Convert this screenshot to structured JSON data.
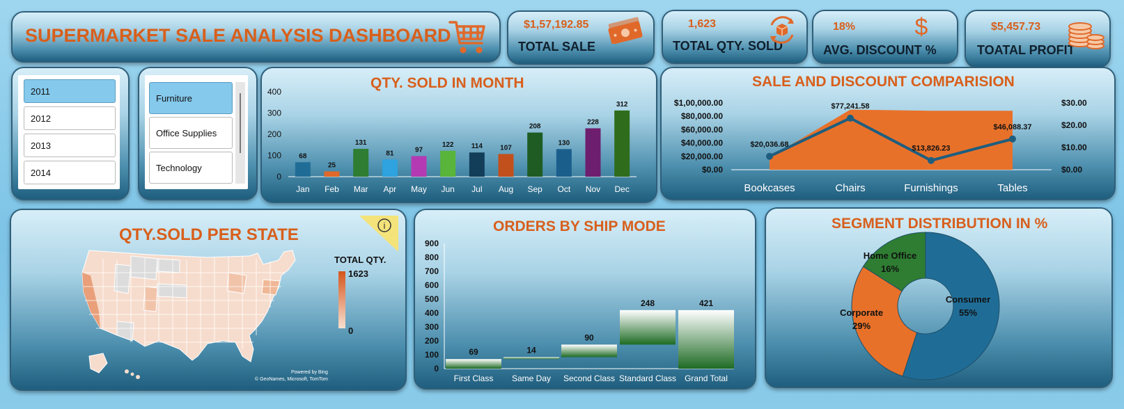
{
  "header": {
    "title": "SUPERMARKET SALE ANALYSIS DASHBOARD"
  },
  "kpis": [
    {
      "value": "$1,57,192.85",
      "label": "TOTAL SALE",
      "icon": "money-icon"
    },
    {
      "value": "1,623",
      "label": "TOTAL QTY. SOLD",
      "icon": "box-cycle-icon"
    },
    {
      "value": "18%",
      "label": "AVG. DISCOUNT %",
      "icon": "dollar-icon"
    },
    {
      "value": "$5,457.73",
      "label": "TOATAL PROFIT",
      "icon": "coins-icon"
    }
  ],
  "year_slicer": {
    "items": [
      "2011",
      "2012",
      "2013",
      "2014"
    ],
    "selected": "2011"
  },
  "category_slicer": {
    "items": [
      "Furniture",
      "Office Supplies",
      "Technology"
    ],
    "selected": "Furniture"
  },
  "map": {
    "title": "QTY.SOLD PER STATE",
    "legend_title": "TOTAL QTY.",
    "legend_max": "1623",
    "legend_min": "0",
    "credit_line1": "Powered by Bing",
    "credit_line2": "© GeoNames, Microsoft, TomTom",
    "info_icon": "i"
  },
  "colors": {
    "accent": "#d85f1c",
    "panel_dark": "#1f5e7e",
    "slicer_selected": "#85c9ec"
  },
  "chart_data": [
    {
      "id": "qty_month",
      "type": "bar",
      "title": "QTY. SOLD IN MONTH",
      "categories": [
        "Jan",
        "Feb",
        "Mar",
        "Apr",
        "May",
        "Jun",
        "Jul",
        "Aug",
        "Sep",
        "Oct",
        "Nov",
        "Dec"
      ],
      "values": [
        68,
        25,
        131,
        81,
        97,
        122,
        114,
        107,
        208,
        130,
        228,
        312
      ],
      "colors": [
        "#1f6d97",
        "#e0692a",
        "#2e7d32",
        "#2ea3e0",
        "#b43ab4",
        "#58b43a",
        "#123e5a",
        "#c2501d",
        "#1e5c24",
        "#1a5f8c",
        "#6e1e6e",
        "#2f6d1c"
      ],
      "y_ticks": [
        "0",
        "100",
        "200",
        "300",
        "400"
      ],
      "ylim": [
        0,
        400
      ]
    },
    {
      "id": "sale_discount",
      "type": "area",
      "title": "SALE AND DISCOUNT COMPARISION",
      "categories": [
        "Bookcases",
        "Chairs",
        "Furnishings",
        "Tables"
      ],
      "series": [
        {
          "values": [
            20036.68,
            77241.58,
            13826.23,
            46088.37
          ],
          "labels": [
            "$20,036.68",
            "$77,241.58",
            "$13,826.23",
            "$46,088.37"
          ],
          "color": "#1f5e7e"
        },
        {
          "values": [
            5.5,
            27.0,
            26.5,
            26.5
          ],
          "color": "#e8712a"
        }
      ],
      "y_left_ticks": [
        "$0.00",
        "$20,000.00",
        "$40,000.00",
        "$60,000.00",
        "$80,000.00",
        "$1,00,000.00"
      ],
      "y_right_ticks": [
        "$0.00",
        "$10.00",
        "$20.00",
        "$30.00"
      ],
      "ylim_left": [
        0,
        100000
      ],
      "ylim_right": [
        0,
        30
      ]
    },
    {
      "id": "ship_mode",
      "type": "bar",
      "title": "ORDERS BY SHIP MODE",
      "categories": [
        "First Class",
        "Same Day",
        "Second Class",
        "Standard Class",
        "Grand Total"
      ],
      "values": [
        69,
        14,
        90,
        248,
        421
      ],
      "y_ticks": [
        "0",
        "100",
        "200",
        "300",
        "400",
        "500",
        "600",
        "700",
        "800",
        "900"
      ],
      "ylim": [
        0,
        900
      ]
    },
    {
      "id": "segment",
      "type": "pie",
      "title": "SEGMENT DISTRIBUTION IN %",
      "labels": [
        "Consumer",
        "Corporate",
        "Home Office"
      ],
      "values": [
        55,
        29,
        16
      ],
      "value_labels": [
        "55%",
        "29%",
        "16%"
      ],
      "colors": [
        "#1f6d97",
        "#e8712a",
        "#2e7d32"
      ]
    }
  ]
}
